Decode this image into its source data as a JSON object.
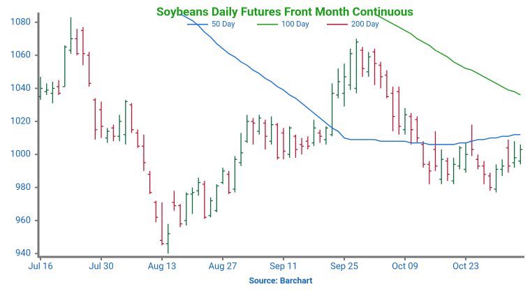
{
  "chart_data": {
    "type": "ohlc",
    "title": "Soybeans Daily Futures Front Month Continuous",
    "source": "Source: Barchart",
    "categories": [
      "Jul 16",
      null,
      null,
      null,
      null,
      null,
      null,
      null,
      null,
      null,
      "Jul 30",
      null,
      null,
      null,
      null,
      null,
      null,
      null,
      null,
      null,
      "Aug 13",
      null,
      null,
      null,
      null,
      null,
      null,
      null,
      null,
      null,
      "Aug 27",
      null,
      null,
      null,
      null,
      null,
      null,
      null,
      null,
      null,
      "Sep 11",
      null,
      null,
      null,
      null,
      null,
      null,
      null,
      null,
      null,
      "Sep 25",
      null,
      null,
      null,
      null,
      null,
      null,
      null,
      null,
      null,
      "Oct 09",
      null,
      null,
      null,
      null,
      null,
      null,
      null,
      null,
      null,
      "Oct 23",
      null,
      null,
      null,
      null,
      null,
      null,
      null,
      null,
      null
    ],
    "up_color": "#0b6b3a",
    "down_color": "#c0132f",
    "open": [
      1035,
      1038,
      1037,
      1041,
      1041,
      1063,
      1070,
      1075,
      1060,
      1033,
      1027,
      1010,
      1016,
      1011,
      1012,
      1030,
      1013,
      1005,
      988,
      971,
      948,
      946,
      971,
      969,
      960,
      976,
      978,
      982,
      963,
      966,
      983,
      988,
      979,
      995,
      1008,
      1020,
      1014,
      1019,
      1008,
      1018,
      1013,
      1000,
      1011,
      1006,
      1008,
      1007,
      1013,
      1009,
      1012,
      1036,
      1037,
      1042,
      1040,
      1063,
      1050,
      1062,
      1054,
      1048,
      1037,
      1038,
      1015,
      1023,
      1021,
      1006,
      994,
      1003,
      985,
      996,
      984,
      993,
      991,
      1008,
      997,
      993,
      987,
      979,
      991,
      1004,
      995,
      996
    ],
    "high": [
      1047,
      1043,
      1044,
      1045,
      1066,
      1083,
      1076,
      1077,
      1062,
      1034,
      1032,
      1016,
      1018,
      1024,
      1033,
      1031,
      1015,
      1012,
      990,
      972,
      971,
      958,
      978,
      970,
      977,
      980,
      986,
      984,
      974,
      982,
      992,
      990,
      999,
      1013,
      1024,
      1022,
      1024,
      1021,
      1023,
      1019,
      1016,
      1017,
      1012,
      1010,
      1011,
      1021,
      1015,
      1017,
      1043,
      1052,
      1055,
      1064,
      1070,
      1065,
      1062,
      1064,
      1056,
      1051,
      1041,
      1041,
      1028,
      1025,
      1023,
      1008,
      996,
      1014,
      1003,
      998,
      998,
      1005,
      1007,
      1018,
      1000,
      996,
      989,
      994,
      997,
      1009,
      1008,
      1006
    ],
    "low": [
      1033,
      1036,
      1031,
      1036,
      1041,
      1061,
      1060,
      1054,
      1041,
      1009,
      1010,
      1007,
      1008,
      1008,
      1006,
      1013,
      1004,
      990,
      976,
      959,
      945,
      940,
      966,
      956,
      957,
      964,
      975,
      961,
      962,
      965,
      982,
      976,
      977,
      993,
      1007,
      1006,
      1012,
      1003,
      1006,
      997,
      997,
      998,
      998,
      1000,
      1003,
      1005,
      1007,
      1006,
      1011,
      1034,
      1029,
      1039,
      1037,
      1047,
      1047,
      1042,
      1040,
      1034,
      1014,
      1012,
      1012,
      1006,
      1007,
      992,
      982,
      990,
      982,
      984,
      982,
      991,
      989,
      999,
      991,
      982,
      978,
      977,
      987,
      989,
      992,
      994
    ],
    "close": [
      1040,
      1039,
      1040,
      1037,
      1065,
      1070,
      1061,
      1061,
      1043,
      1015,
      1017,
      1014,
      1011,
      1020,
      1032,
      1015,
      1005,
      995,
      977,
      962,
      946,
      952,
      969,
      958,
      976,
      977,
      983,
      962,
      972,
      981,
      990,
      977,
      997,
      1001,
      1020,
      1019,
      1022,
      1011,
      1018,
      998,
      1002,
      1016,
      1003,
      1005,
      1005,
      1016,
      1011,
      1016,
      1037,
      1044,
      1047,
      1061,
      1068,
      1052,
      1059,
      1055,
      1047,
      1035,
      1023,
      1017,
      1024,
      1015,
      1010,
      994,
      990,
      993,
      997,
      988,
      994,
      1004,
      1000,
      1003,
      993,
      988,
      980,
      991,
      993,
      993,
      998,
      1003
    ],
    "series": [
      {
        "name": "50 Day",
        "color": "#1a6fe0",
        "values": [
          null,
          null,
          null,
          null,
          null,
          null,
          null,
          null,
          null,
          null,
          null,
          null,
          null,
          null,
          null,
          null,
          null,
          null,
          null,
          null,
          null,
          null,
          null,
          1085,
          1083,
          1081,
          1078,
          1074,
          1071,
          1067,
          1064,
          1061,
          1059,
          1056,
          1054,
          1051,
          1049,
          1046,
          1044,
          1041,
          1039,
          1036,
          1034,
          1031,
          1028,
          1025,
          1022,
          1019,
          1016,
          1014,
          1010,
          1009,
          1009,
          1009,
          1009,
          1009,
          1008,
          1008,
          1008,
          1008,
          1008,
          1007,
          1007,
          1007,
          1006,
          1006,
          1006,
          1006,
          1006,
          1007,
          1007,
          1008,
          1009,
          1009,
          1010,
          1010,
          1011,
          1011,
          1012,
          1012
        ]
      },
      {
        "name": "100 Day",
        "color": "#1a9e1a",
        "values": [
          null,
          null,
          null,
          null,
          null,
          null,
          null,
          null,
          null,
          null,
          null,
          null,
          null,
          null,
          null,
          null,
          null,
          null,
          null,
          null,
          null,
          null,
          null,
          null,
          null,
          null,
          null,
          null,
          null,
          null,
          null,
          null,
          null,
          null,
          null,
          null,
          null,
          null,
          null,
          null,
          null,
          null,
          null,
          null,
          null,
          null,
          null,
          null,
          null,
          null,
          null,
          null,
          null,
          null,
          null,
          1085,
          1083,
          1081,
          1079,
          1077,
          1075,
          1073,
          1070,
          1068,
          1066,
          1063,
          1061,
          1059,
          1056,
          1054,
          1052,
          1051,
          1049,
          1047,
          1045,
          1043,
          1041,
          1039,
          1038,
          1036
        ]
      },
      {
        "name": "200 Day",
        "color": "#c0132f",
        "values": [
          null,
          null,
          null,
          null,
          null,
          null,
          null,
          null,
          null,
          null,
          null,
          null,
          null,
          null,
          null,
          null,
          null,
          null,
          null,
          null,
          null,
          null,
          null,
          null,
          null,
          null,
          null,
          null,
          null,
          null,
          null,
          null,
          null,
          null,
          null,
          null,
          null,
          null,
          null,
          null,
          null,
          null,
          null,
          null,
          null,
          null,
          null,
          null,
          null,
          null,
          null,
          null,
          null,
          null,
          null,
          null,
          null,
          null,
          null,
          null,
          null,
          null,
          null,
          null,
          null,
          null,
          null,
          null,
          null,
          null,
          null,
          null,
          null,
          null,
          null,
          null,
          null,
          null,
          null,
          null
        ]
      }
    ],
    "ylim": [
      938,
      1085
    ],
    "yticks": [
      940,
      960,
      980,
      1000,
      1020,
      1040,
      1060,
      1080
    ]
  }
}
